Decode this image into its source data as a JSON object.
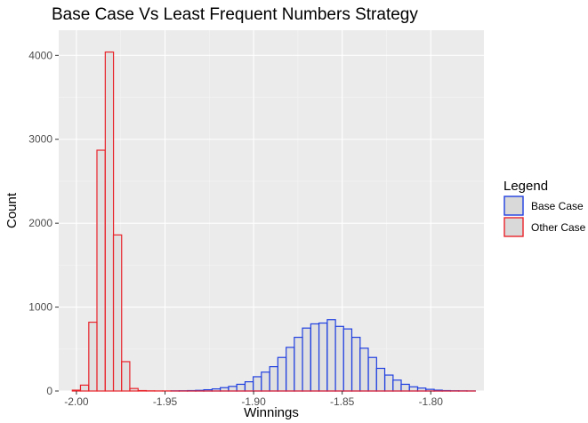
{
  "chart_data": {
    "type": "histogram",
    "title": "Base Case Vs Least Frequent Numbers Strategy",
    "xlabel": "Winnings",
    "ylabel": "Count",
    "xlim": [
      -2.01,
      -1.77
    ],
    "ylim": [
      0,
      4300
    ],
    "x_ticks": [
      -2.0,
      -1.95,
      -1.9,
      -1.85,
      -1.8
    ],
    "x_tick_labels": [
      "-2.00",
      "-1.95",
      "-1.90",
      "-1.85",
      "-1.80"
    ],
    "y_ticks": [
      0,
      1000,
      2000,
      3000,
      4000
    ],
    "y_tick_labels": [
      "0",
      "1000",
      "2000",
      "3000",
      "4000"
    ],
    "grid": true,
    "legend": {
      "title": "Legend",
      "position": "right"
    },
    "bin_width": 0.00464,
    "series": [
      {
        "name": "Base Case",
        "color": "#1f3fe0",
        "fill": "#d9d9d9",
        "bins": [
          {
            "x": -1.9443,
            "count": 2
          },
          {
            "x": -1.9397,
            "count": 3
          },
          {
            "x": -1.935,
            "count": 5
          },
          {
            "x": -1.9304,
            "count": 8
          },
          {
            "x": -1.9258,
            "count": 15
          },
          {
            "x": -1.9211,
            "count": 25
          },
          {
            "x": -1.9165,
            "count": 40
          },
          {
            "x": -1.9118,
            "count": 55
          },
          {
            "x": -1.9072,
            "count": 80
          },
          {
            "x": -1.9025,
            "count": 110
          },
          {
            "x": -1.8979,
            "count": 170
          },
          {
            "x": -1.8933,
            "count": 225
          },
          {
            "x": -1.8886,
            "count": 290
          },
          {
            "x": -1.884,
            "count": 400
          },
          {
            "x": -1.8793,
            "count": 520
          },
          {
            "x": -1.8747,
            "count": 640
          },
          {
            "x": -1.8701,
            "count": 750
          },
          {
            "x": -1.8654,
            "count": 800
          },
          {
            "x": -1.8608,
            "count": 810
          },
          {
            "x": -1.8561,
            "count": 850
          },
          {
            "x": -1.8515,
            "count": 770
          },
          {
            "x": -1.8469,
            "count": 740
          },
          {
            "x": -1.8422,
            "count": 640
          },
          {
            "x": -1.8376,
            "count": 510
          },
          {
            "x": -1.8329,
            "count": 400
          },
          {
            "x": -1.8283,
            "count": 270
          },
          {
            "x": -1.8236,
            "count": 190
          },
          {
            "x": -1.819,
            "count": 130
          },
          {
            "x": -1.8144,
            "count": 80
          },
          {
            "x": -1.8097,
            "count": 50
          },
          {
            "x": -1.8051,
            "count": 35
          },
          {
            "x": -1.8004,
            "count": 20
          },
          {
            "x": -1.7958,
            "count": 10
          },
          {
            "x": -1.7912,
            "count": 5
          },
          {
            "x": -1.7865,
            "count": 3
          },
          {
            "x": -1.7819,
            "count": 2
          },
          {
            "x": -1.7772,
            "count": 1
          }
        ]
      },
      {
        "name": "Other Case",
        "color": "#e8232a",
        "fill": "#d9d9d9",
        "bins": [
          {
            "x": -2.0,
            "count": 10
          },
          {
            "x": -1.9954,
            "count": 70
          },
          {
            "x": -1.9907,
            "count": 820
          },
          {
            "x": -1.9861,
            "count": 2870
          },
          {
            "x": -1.9814,
            "count": 4040
          },
          {
            "x": -1.9768,
            "count": 1860
          },
          {
            "x": -1.9722,
            "count": 350
          },
          {
            "x": -1.9675,
            "count": 30
          },
          {
            "x": -1.9629,
            "count": 5
          },
          {
            "x": -1.9582,
            "count": 2
          },
          {
            "x": -1.9536,
            "count": 1
          },
          {
            "x": -1.949,
            "count": 1
          },
          {
            "x": -1.9443,
            "count": 0
          },
          {
            "x": -1.9397,
            "count": 0
          },
          {
            "x": -1.935,
            "count": 0
          },
          {
            "x": -1.9304,
            "count": 0
          },
          {
            "x": -1.9258,
            "count": 0
          },
          {
            "x": -1.9211,
            "count": 0
          },
          {
            "x": -1.9165,
            "count": 0
          },
          {
            "x": -1.9118,
            "count": 0
          },
          {
            "x": -1.9072,
            "count": 0
          },
          {
            "x": -1.9025,
            "count": 0
          },
          {
            "x": -1.8979,
            "count": 0
          },
          {
            "x": -1.8933,
            "count": 0
          },
          {
            "x": -1.8886,
            "count": 0
          },
          {
            "x": -1.884,
            "count": 0
          },
          {
            "x": -1.8793,
            "count": 0
          },
          {
            "x": -1.8747,
            "count": 0
          },
          {
            "x": -1.8701,
            "count": 0
          },
          {
            "x": -1.8654,
            "count": 0
          },
          {
            "x": -1.8608,
            "count": 0
          },
          {
            "x": -1.8561,
            "count": 0
          },
          {
            "x": -1.8515,
            "count": 0
          },
          {
            "x": -1.8469,
            "count": 0
          },
          {
            "x": -1.8422,
            "count": 0
          },
          {
            "x": -1.8376,
            "count": 0
          },
          {
            "x": -1.8329,
            "count": 0
          },
          {
            "x": -1.8283,
            "count": 0
          },
          {
            "x": -1.8236,
            "count": 0
          },
          {
            "x": -1.819,
            "count": 0
          },
          {
            "x": -1.8144,
            "count": 0
          },
          {
            "x": -1.8097,
            "count": 0
          },
          {
            "x": -1.8051,
            "count": 0
          },
          {
            "x": -1.8004,
            "count": 0
          },
          {
            "x": -1.7958,
            "count": 0
          },
          {
            "x": -1.7912,
            "count": 0
          },
          {
            "x": -1.7865,
            "count": 0
          },
          {
            "x": -1.7819,
            "count": 0
          },
          {
            "x": -1.7772,
            "count": 0
          }
        ]
      }
    ]
  }
}
